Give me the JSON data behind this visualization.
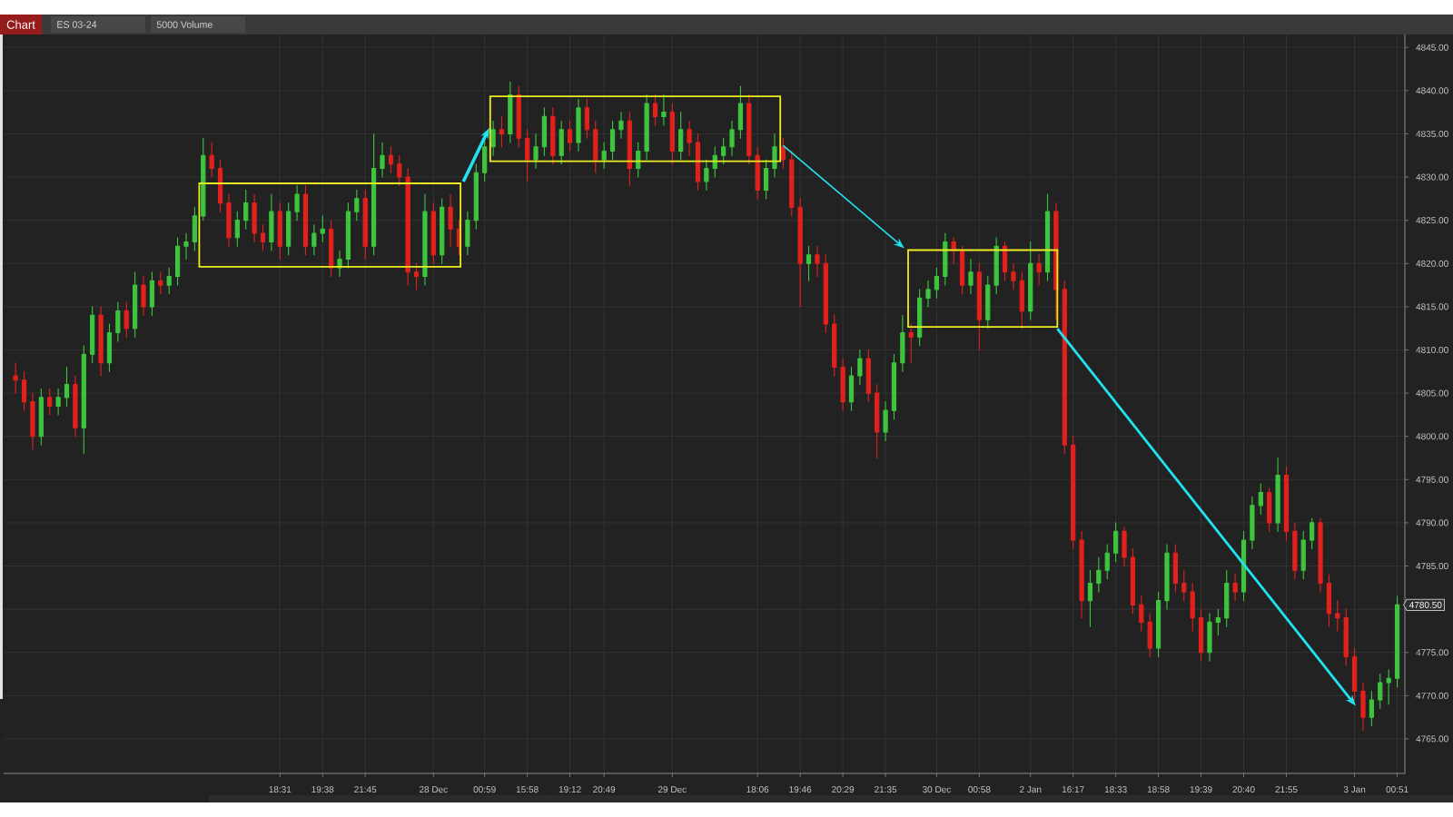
{
  "chart_data": {
    "type": "candlestick",
    "title": "ES 03-24",
    "subtitle": "5000 Volume",
    "categories": [
      null,
      null,
      null,
      null,
      null,
      null,
      null,
      null,
      null,
      null,
      null,
      null,
      null,
      null,
      null,
      null,
      null,
      null,
      null,
      null,
      null,
      null,
      null,
      null,
      null,
      null,
      null,
      null,
      null,
      null,
      null,
      "18:31",
      null,
      null,
      null,
      null,
      "19:38",
      null,
      null,
      null,
      null,
      "21:45",
      null,
      null,
      null,
      null,
      null,
      null,
      null,
      "28 Dec",
      null,
      null,
      null,
      null,
      null,
      "00:59",
      null,
      null,
      null,
      null,
      "15:58",
      null,
      null,
      null,
      null,
      "19:12",
      null,
      null,
      null,
      "20:49",
      null,
      null,
      null,
      null,
      null,
      null,
      null,
      "29 Dec",
      null,
      null,
      null,
      null,
      null,
      null,
      null,
      null,
      null,
      "18:06",
      null,
      null,
      null,
      null,
      "19:46",
      null,
      null,
      null,
      null,
      "20:29",
      null,
      null,
      null,
      null,
      "21:35",
      null,
      null,
      null,
      null,
      null,
      "30 Dec",
      null,
      null,
      null,
      null,
      "00:58",
      null,
      null,
      null,
      null,
      null,
      "2 Jan",
      null,
      null,
      null,
      null,
      "16:17",
      null,
      null,
      null,
      null,
      "18:33",
      null,
      null,
      null,
      null,
      "18:58",
      null,
      null,
      null,
      null,
      "19:39",
      null,
      null,
      null,
      null,
      "20:40",
      null,
      null,
      null,
      null,
      "21:55",
      null,
      null,
      null,
      null,
      null,
      null,
      null,
      "3 Jan",
      null,
      null,
      null,
      null,
      "00:51"
    ],
    "ohlc": [
      [
        4807,
        4808.5,
        4805,
        4806.5
      ],
      [
        4806.5,
        4807.5,
        4803,
        4804
      ],
      [
        4804,
        4805,
        4798.5,
        4800
      ],
      [
        4800,
        4805.5,
        4799,
        4804.5
      ],
      [
        4804.5,
        4805.5,
        4802.5,
        4803.5
      ],
      [
        4803.5,
        4805.5,
        4802.5,
        4804.5
      ],
      [
        4804.5,
        4808,
        4803.5,
        4806
      ],
      [
        4806,
        4807,
        4800,
        4801
      ],
      [
        4801,
        4810.5,
        4798,
        4809.5
      ],
      [
        4809.5,
        4815,
        4808.5,
        4814
      ],
      [
        4814,
        4815,
        4807,
        4808.5
      ],
      [
        4808.5,
        4813,
        4807.5,
        4812
      ],
      [
        4812,
        4815.5,
        4811,
        4814.5
      ],
      [
        4814.5,
        4815.5,
        4811.5,
        4812.5
      ],
      [
        4812.5,
        4819,
        4811.5,
        4817.5
      ],
      [
        4817.5,
        4818.5,
        4814,
        4815
      ],
      [
        4815,
        4819,
        4814,
        4818
      ],
      [
        4818,
        4819,
        4816.5,
        4817.5
      ],
      [
        4817.5,
        4819.5,
        4816.5,
        4818.5
      ],
      [
        4818.5,
        4823,
        4817.5,
        4822
      ],
      [
        4822,
        4823.5,
        4820.5,
        4822.5
      ],
      [
        4822.5,
        4826.5,
        4821.5,
        4825.5
      ],
      [
        4825.5,
        4834.5,
        4825,
        4832.5
      ],
      [
        4832.5,
        4834,
        4830,
        4831
      ],
      [
        4831,
        4832,
        4826,
        4827
      ],
      [
        4827,
        4828,
        4822,
        4823
      ],
      [
        4823,
        4826,
        4822,
        4825
      ],
      [
        4825,
        4828.5,
        4824,
        4827
      ],
      [
        4827,
        4828,
        4822.5,
        4823.5
      ],
      [
        4823.5,
        4824.5,
        4821.5,
        4822.5
      ],
      [
        4822.5,
        4828,
        4821.5,
        4826
      ],
      [
        4826,
        4827,
        4820.5,
        4822
      ],
      [
        4822,
        4827,
        4821,
        4826
      ],
      [
        4826,
        4829,
        4825,
        4828
      ],
      [
        4828,
        4829,
        4821,
        4822
      ],
      [
        4822,
        4824.5,
        4821,
        4823.5
      ],
      [
        4823.5,
        4825.5,
        4822.5,
        4824
      ],
      [
        4824,
        4825,
        4818.5,
        4819.5
      ],
      [
        4819.5,
        4821.5,
        4818.5,
        4820.5
      ],
      [
        4820.5,
        4827,
        4819.5,
        4826
      ],
      [
        4826,
        4828.5,
        4825,
        4827.5
      ],
      [
        4827.5,
        4828.5,
        4820.5,
        4822
      ],
      [
        4822,
        4835,
        4821,
        4831
      ],
      [
        4831,
        4834,
        4830,
        4832.5
      ],
      [
        4832.5,
        4833.5,
        4830.5,
        4831.5
      ],
      [
        4831.5,
        4832.5,
        4829,
        4830
      ],
      [
        4830,
        4831,
        4817.5,
        4819
      ],
      [
        4819,
        4820,
        4817,
        4818.5
      ],
      [
        4818.5,
        4828,
        4817.5,
        4826
      ],
      [
        4826,
        4827,
        4820,
        4821
      ],
      [
        4821,
        4827.5,
        4820,
        4826.5
      ],
      [
        4826.5,
        4828,
        4822,
        4824
      ],
      [
        4824,
        4825,
        4821,
        4822
      ],
      [
        4822,
        4826,
        4821,
        4825
      ],
      [
        4825,
        4831.5,
        4824,
        4830.5
      ],
      [
        4830.5,
        4834.5,
        4829.5,
        4833.5
      ],
      [
        4833.5,
        4836.5,
        4832.5,
        4835.5
      ],
      [
        4835.5,
        4837,
        4833.5,
        4835
      ],
      [
        4835,
        4841,
        4834,
        4839.5
      ],
      [
        4839.5,
        4840.5,
        4833.5,
        4834.5
      ],
      [
        4834.5,
        4835.5,
        4829.5,
        4832
      ],
      [
        4832,
        4835,
        4831,
        4833.5
      ],
      [
        4833.5,
        4838,
        4832.5,
        4837
      ],
      [
        4837,
        4838,
        4831.5,
        4832.5
      ],
      [
        4832.5,
        4836.5,
        4831.5,
        4835.5
      ],
      [
        4835.5,
        4836.5,
        4833,
        4834
      ],
      [
        4834,
        4839,
        4833,
        4838
      ],
      [
        4838,
        4839,
        4834.5,
        4835.5
      ],
      [
        4835.5,
        4836.5,
        4830.5,
        4832
      ],
      [
        4832,
        4834,
        4831,
        4833
      ],
      [
        4833,
        4836.5,
        4832,
        4835.5
      ],
      [
        4835.5,
        4837.5,
        4834.5,
        4836.5
      ],
      [
        4836.5,
        4837.5,
        4829,
        4831
      ],
      [
        4831,
        4834,
        4830,
        4833
      ],
      [
        4833,
        4839.5,
        4832,
        4838.5
      ],
      [
        4838.5,
        4839.5,
        4836,
        4837
      ],
      [
        4837,
        4839.5,
        4836,
        4837.5
      ],
      [
        4837.5,
        4838.5,
        4831.5,
        4833
      ],
      [
        4833,
        4837.5,
        4832,
        4835.5
      ],
      [
        4835.5,
        4836.5,
        4832.5,
        4834
      ],
      [
        4834,
        4835,
        4828.5,
        4829.5
      ],
      [
        4829.5,
        4832,
        4828.5,
        4831
      ],
      [
        4831,
        4833.5,
        4830,
        4832.5
      ],
      [
        4832.5,
        4834.5,
        4831.5,
        4833.5
      ],
      [
        4833.5,
        4836.5,
        4832.5,
        4835.5
      ],
      [
        4835.5,
        4840.5,
        4834.5,
        4838.5
      ],
      [
        4838.5,
        4839.5,
        4831.5,
        4832.5
      ],
      [
        4832.5,
        4833.5,
        4827.5,
        4828.5
      ],
      [
        4828.5,
        4832,
        4827.5,
        4831
      ],
      [
        4831,
        4835,
        4830,
        4833.5
      ],
      [
        4833.5,
        4834.5,
        4831,
        4832
      ],
      [
        4832,
        4833,
        4825.5,
        4826.5
      ],
      [
        4826.5,
        4827.5,
        4815,
        4820
      ],
      [
        4820,
        4822,
        4818,
        4821
      ],
      [
        4821,
        4822,
        4818.5,
        4820
      ],
      [
        4820,
        4821,
        4812,
        4813
      ],
      [
        4813,
        4814,
        4807,
        4808
      ],
      [
        4808,
        4809,
        4803,
        4804
      ],
      [
        4804,
        4808,
        4803,
        4807
      ],
      [
        4807,
        4810,
        4806,
        4809
      ],
      [
        4809,
        4810,
        4804,
        4805
      ],
      [
        4805,
        4806,
        4797.5,
        4800.5
      ],
      [
        4800.5,
        4804,
        4799.5,
        4803
      ],
      [
        4803,
        4809.5,
        4802,
        4808.5
      ],
      [
        4808.5,
        4814,
        4807.5,
        4812
      ],
      [
        4812,
        4813,
        4808.5,
        4811.5
      ],
      [
        4811.5,
        4817,
        4810.5,
        4816
      ],
      [
        4816,
        4818,
        4815,
        4817
      ],
      [
        4817,
        4819.5,
        4816,
        4818.5
      ],
      [
        4818.5,
        4823.5,
        4817.5,
        4822.5
      ],
      [
        4822.5,
        4823,
        4820,
        4821.5
      ],
      [
        4821.5,
        4822,
        4816.5,
        4817.5
      ],
      [
        4817.5,
        4820.5,
        4816.5,
        4819
      ],
      [
        4819,
        4820,
        4810,
        4813.5
      ],
      [
        4813.5,
        4818.5,
        4812.5,
        4817.5
      ],
      [
        4817.5,
        4823,
        4816.5,
        4822
      ],
      [
        4822,
        4822.5,
        4818,
        4819
      ],
      [
        4819,
        4820,
        4817,
        4818
      ],
      [
        4818,
        4819,
        4812.5,
        4814.5
      ],
      [
        4814.5,
        4822.5,
        4813.5,
        4820
      ],
      [
        4820,
        4821,
        4817.5,
        4819
      ],
      [
        4819,
        4828,
        4818,
        4826
      ],
      [
        4826,
        4827,
        4813.5,
        4817
      ],
      [
        4817,
        4818,
        4798,
        4799
      ],
      [
        4799,
        4800,
        4787,
        4788
      ],
      [
        4788,
        4789,
        4779,
        4781
      ],
      [
        4781,
        4784.5,
        4778,
        4783
      ],
      [
        4783,
        4786,
        4782,
        4784.5
      ],
      [
        4784.5,
        4787.5,
        4783.5,
        4786.5
      ],
      [
        4786.5,
        4790,
        4785.5,
        4789
      ],
      [
        4789,
        4789.5,
        4785,
        4786
      ],
      [
        4786,
        4787,
        4779.5,
        4780.5
      ],
      [
        4780.5,
        4781.5,
        4777.5,
        4778.5
      ],
      [
        4778.5,
        4779.5,
        4774.5,
        4775.5
      ],
      [
        4775.5,
        4782,
        4774.5,
        4781
      ],
      [
        4781,
        4787.5,
        4780,
        4786.5
      ],
      [
        4786.5,
        4787.5,
        4782,
        4783
      ],
      [
        4783,
        4784.5,
        4781,
        4782
      ],
      [
        4782,
        4783,
        4777.5,
        4779
      ],
      [
        4779,
        4780,
        4774,
        4775
      ],
      [
        4775,
        4779.5,
        4774,
        4778.5
      ],
      [
        4778.5,
        4780,
        4777,
        4779
      ],
      [
        4779,
        4784.5,
        4778,
        4783
      ],
      [
        4783,
        4784,
        4781,
        4782
      ],
      [
        4782,
        4789,
        4781,
        4788
      ],
      [
        4788,
        4793,
        4787,
        4792
      ],
      [
        4792,
        4794.5,
        4791,
        4793.5
      ],
      [
        4793.5,
        4794,
        4789,
        4790
      ],
      [
        4790,
        4797.5,
        4789,
        4795.5
      ],
      [
        4795.5,
        4796.5,
        4788,
        4789
      ],
      [
        4789,
        4790,
        4783.5,
        4784.5
      ],
      [
        4784.5,
        4789,
        4783.5,
        4788
      ],
      [
        4788,
        4790.5,
        4787,
        4790
      ],
      [
        4790,
        4790.5,
        4782,
        4783
      ],
      [
        4783,
        4784,
        4778,
        4779.5
      ],
      [
        4779.5,
        4781,
        4777.5,
        4779
      ],
      [
        4779,
        4780,
        4773.5,
        4774.5
      ],
      [
        4774.5,
        4775.5,
        4769.5,
        4770.5
      ],
      [
        4770.5,
        4771.5,
        4766,
        4767.5
      ],
      [
        4767.5,
        4770.5,
        4766.5,
        4769.5
      ],
      [
        4769.5,
        4772.5,
        4768.5,
        4771.5
      ],
      [
        4771.5,
        4773,
        4769,
        4772
      ],
      [
        4772,
        4781.5,
        4771,
        4780.5
      ]
    ],
    "colors": [
      "#e3211c",
      "#e3211c",
      "#e3211c",
      "#3ec43e",
      "#e3211c",
      "#3ec43e",
      "#3ec43e",
      "#e3211c",
      "#3ec43e",
      "#3ec43e",
      "#e3211c",
      "#3ec43e",
      "#3ec43e",
      "#e3211c",
      "#3ec43e",
      "#e3211c",
      "#3ec43e",
      "#e3211c",
      "#3ec43e",
      "#3ec43e",
      "#3ec43e",
      "#3ec43e",
      "#3ec43e",
      "#e3211c",
      "#e3211c",
      "#e3211c",
      "#3ec43e",
      "#3ec43e",
      "#e3211c",
      "#e3211c",
      "#3ec43e",
      "#e3211c",
      "#3ec43e",
      "#3ec43e",
      "#e3211c",
      "#3ec43e",
      "#3ec43e",
      "#e3211c",
      "#3ec43e",
      "#3ec43e",
      "#3ec43e",
      "#e3211c",
      "#3ec43e",
      "#3ec43e",
      "#e3211c",
      "#e3211c",
      "#e3211c",
      "#e3211c",
      "#3ec43e",
      "#e3211c",
      "#3ec43e",
      "#e3211c",
      "#e3211c",
      "#3ec43e",
      "#3ec43e",
      "#3ec43e",
      "#3ec43e",
      "#e3211c",
      "#3ec43e",
      "#e3211c",
      "#e3211c",
      "#3ec43e",
      "#3ec43e",
      "#e3211c",
      "#3ec43e",
      "#e3211c",
      "#3ec43e",
      "#e3211c",
      "#e3211c",
      "#3ec43e",
      "#3ec43e",
      "#3ec43e",
      "#e3211c",
      "#3ec43e",
      "#3ec43e",
      "#e3211c",
      "#3ec43e",
      "#e3211c",
      "#3ec43e",
      "#e3211c",
      "#e3211c",
      "#3ec43e",
      "#3ec43e",
      "#3ec43e",
      "#3ec43e",
      "#3ec43e",
      "#e3211c",
      "#e3211c",
      "#3ec43e",
      "#3ec43e",
      "#e3211c",
      "#e3211c",
      "#e3211c",
      "#3ec43e",
      "#e3211c",
      "#e3211c",
      "#e3211c",
      "#e3211c",
      "#3ec43e",
      "#3ec43e",
      "#e3211c",
      "#e3211c",
      "#3ec43e",
      "#3ec43e",
      "#3ec43e",
      "#e3211c",
      "#3ec43e",
      "#3ec43e",
      "#3ec43e",
      "#3ec43e",
      "#e3211c",
      "#e3211c",
      "#3ec43e",
      "#e3211c",
      "#3ec43e",
      "#3ec43e",
      "#e3211c",
      "#e3211c",
      "#e3211c",
      "#3ec43e",
      "#e3211c",
      "#3ec43e",
      "#e3211c",
      "#e3211c",
      "#e3211c",
      "#e3211c",
      "#3ec43e",
      "#3ec43e",
      "#3ec43e",
      "#3ec43e",
      "#e3211c",
      "#e3211c",
      "#e3211c",
      "#e3211c",
      "#3ec43e",
      "#3ec43e",
      "#e3211c",
      "#e3211c",
      "#e3211c",
      "#e3211c",
      "#3ec43e",
      "#3ec43e",
      "#3ec43e",
      "#e3211c",
      "#3ec43e",
      "#3ec43e",
      "#3ec43e",
      "#e3211c",
      "#3ec43e",
      "#e3211c",
      "#e3211c",
      "#3ec43e",
      "#3ec43e",
      "#e3211c",
      "#e3211c",
      "#e3211c",
      "#e3211c",
      "#e3211c",
      "#e3211c",
      "#3ec43e",
      "#3ec43e",
      "#3ec43e",
      "#3ec43e"
    ],
    "ylim": [
      4761,
      4846.5
    ],
    "yticks": [
      {
        "value": 4765,
        "label": "4765.00"
      },
      {
        "value": 4770,
        "label": "4770.00"
      },
      {
        "value": 4775,
        "label": "4775.00"
      },
      {
        "value": 4780,
        "label": null
      },
      {
        "value": 4785,
        "label": "4785.00"
      },
      {
        "value": 4790,
        "label": "4790.00"
      },
      {
        "value": 4795,
        "label": "4795.00"
      },
      {
        "value": 4800,
        "label": "4800.00"
      },
      {
        "value": 4805,
        "label": "4805.00"
      },
      {
        "value": 4810,
        "label": "4810.00"
      },
      {
        "value": 4815,
        "label": "4815.00"
      },
      {
        "value": 4820,
        "label": "4820.00"
      },
      {
        "value": 4825,
        "label": "4825.00"
      },
      {
        "value": 4830,
        "label": "4830.00"
      },
      {
        "value": 4835,
        "label": "4835.00"
      },
      {
        "value": 4840,
        "label": "4840.00"
      },
      {
        "value": 4845,
        "label": "4845.00"
      }
    ],
    "grid": true,
    "annotations": [
      "Chart",
      "4780.50"
    ]
  }
}
